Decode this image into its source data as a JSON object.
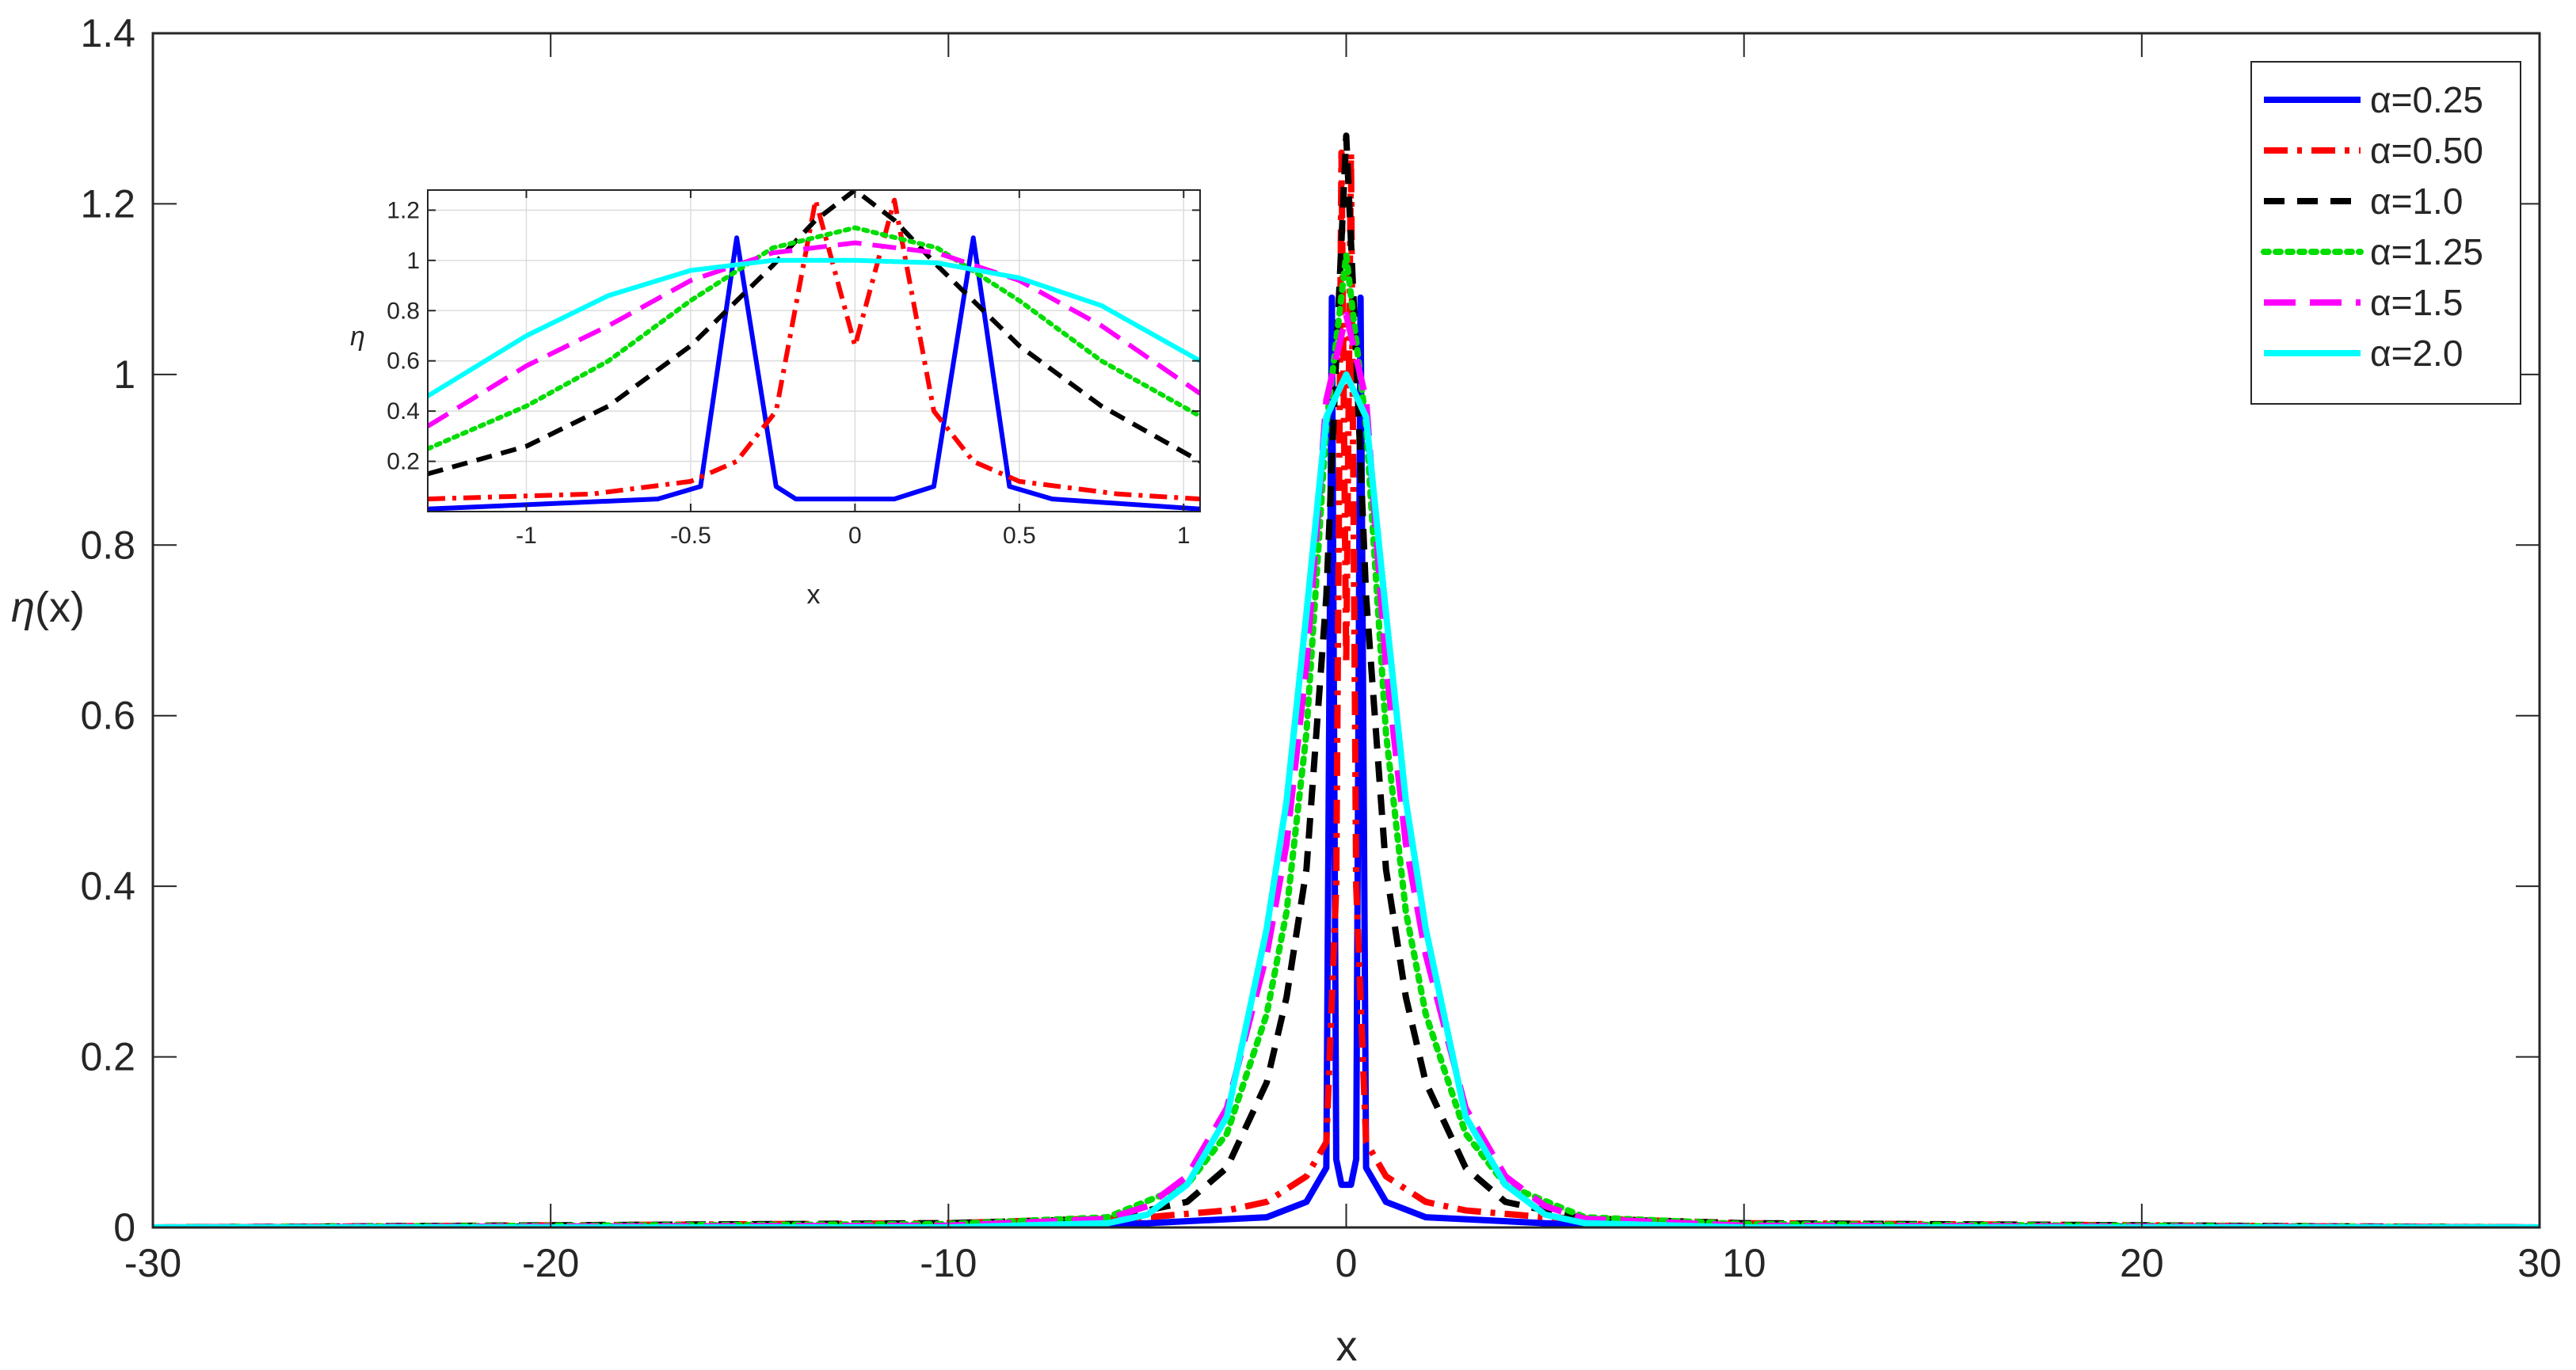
{
  "chart_data": [
    {
      "type": "line",
      "title": "",
      "xlabel": "x",
      "ylabel_symbol": "η",
      "ylabel_rest": "(x)",
      "xlim": [
        -30,
        30
      ],
      "ylim": [
        0,
        1.4
      ],
      "xticks": [
        -30,
        -20,
        -10,
        0,
        10,
        20,
        30
      ],
      "xtick_labels": [
        "-30",
        "-20",
        "-10",
        "0",
        "10",
        "20",
        "30"
      ],
      "yticks": [
        0,
        0.2,
        0.4,
        0.6,
        0.8,
        1.0,
        1.2,
        1.4
      ],
      "ytick_labels": [
        "0",
        "0.2",
        "0.4",
        "0.6",
        "0.8",
        "1",
        "1.2",
        "1.4"
      ],
      "grid": false,
      "legend_position": "top-right",
      "series": [
        {
          "name": "α=0.25",
          "color": "#0000ff",
          "dash": "solid",
          "x": [
            -30,
            -10,
            -5,
            -2,
            -1,
            -0.5,
            -0.36,
            -0.25,
            -0.12,
            0,
            0.12,
            0.25,
            0.36,
            0.5,
            1,
            2,
            5,
            10,
            30
          ],
          "y": [
            0,
            0.002,
            0.005,
            0.012,
            0.03,
            0.07,
            1.09,
            0.08,
            0.05,
            0.05,
            0.05,
            0.08,
            1.09,
            0.07,
            0.03,
            0.012,
            0.005,
            0.002,
            0
          ]
        },
        {
          "name": "α=0.50",
          "color": "#ff0000",
          "dash": "dashdot",
          "x": [
            -30,
            -10,
            -5,
            -3,
            -2,
            -1,
            -0.5,
            -0.25,
            -0.12,
            0,
            0.12,
            0.25,
            0.5,
            1,
            2,
            3,
            5,
            10,
            30
          ],
          "y": [
            0,
            0.005,
            0.012,
            0.02,
            0.03,
            0.06,
            0.1,
            0.4,
            1.26,
            0.66,
            1.26,
            0.4,
            0.1,
            0.06,
            0.03,
            0.02,
            0.012,
            0.005,
            0
          ]
        },
        {
          "name": "α=1.0",
          "color": "#000000",
          "dash": "dashed",
          "x": [
            -30,
            -10,
            -6,
            -4,
            -3,
            -2,
            -1.5,
            -1,
            -0.5,
            -0.25,
            0,
            0.25,
            0.5,
            1,
            1.5,
            2,
            3,
            4,
            6,
            10,
            30
          ],
          "y": [
            0,
            0.005,
            0.01,
            0.03,
            0.07,
            0.17,
            0.27,
            0.42,
            0.74,
            1.02,
            1.28,
            1.02,
            0.74,
            0.42,
            0.27,
            0.17,
            0.07,
            0.03,
            0.01,
            0.005,
            0
          ]
        },
        {
          "name": "α=1.25",
          "color": "#00dd00",
          "dash": "dotted",
          "x": [
            -30,
            -10,
            -6,
            -4,
            -3,
            -2,
            -1.5,
            -1,
            -0.5,
            0,
            0.5,
            1,
            1.5,
            2,
            3,
            4,
            6,
            10,
            30
          ],
          "y": [
            0,
            0.004,
            0.012,
            0.05,
            0.11,
            0.25,
            0.37,
            0.58,
            0.94,
            1.14,
            0.94,
            0.58,
            0.37,
            0.25,
            0.11,
            0.05,
            0.012,
            0.004,
            0
          ]
        },
        {
          "name": "α=1.5",
          "color": "#ff00ff",
          "dash": "longdash",
          "x": [
            -30,
            -10,
            -6,
            -5,
            -4,
            -3,
            -2,
            -1.5,
            -1,
            -0.5,
            0,
            0.5,
            1,
            1.5,
            2,
            3,
            4,
            5,
            6,
            10,
            30
          ],
          "y": [
            0,
            0.002,
            0.01,
            0.025,
            0.06,
            0.14,
            0.32,
            0.45,
            0.66,
            0.97,
            1.07,
            0.97,
            0.66,
            0.45,
            0.32,
            0.14,
            0.06,
            0.025,
            0.01,
            0.002,
            0
          ]
        },
        {
          "name": "α=2.0",
          "color": "#00ffff",
          "dash": "solid",
          "x": [
            -30,
            -10,
            -6,
            -5,
            -4,
            -3,
            -2,
            -1.5,
            -1,
            -0.5,
            0,
            0.5,
            1,
            1.5,
            2,
            3,
            4,
            5,
            6,
            10,
            30
          ],
          "y": [
            0,
            0,
            0.005,
            0.015,
            0.05,
            0.13,
            0.35,
            0.5,
            0.72,
            0.95,
            1.0,
            0.95,
            0.72,
            0.5,
            0.35,
            0.13,
            0.05,
            0.015,
            0.005,
            0,
            0
          ]
        }
      ]
    },
    {
      "type": "line",
      "title": "",
      "xlabel": "x",
      "ylabel": "η",
      "xlim": [
        -1.3,
        1.05
      ],
      "ylim": [
        0,
        1.28
      ],
      "xticks": [
        -1,
        -0.5,
        0,
        0.5,
        1
      ],
      "xtick_labels": [
        "-1",
        "-0.5",
        "0",
        "0.5",
        "1"
      ],
      "yticks": [
        0.2,
        0.4,
        0.6,
        0.8,
        1.0,
        1.2
      ],
      "ytick_labels": [
        "0.2",
        "0.4",
        "0.6",
        "0.8",
        "1",
        "1.2"
      ],
      "grid": true,
      "series": [
        {
          "name": "α=0.25",
          "color": "#0000ff",
          "dash": "solid",
          "x": [
            -1.3,
            -0.6,
            -0.47,
            -0.36,
            -0.24,
            -0.18,
            0,
            0.12,
            0.24,
            0.36,
            0.47,
            0.6,
            1.05
          ],
          "y": [
            0.01,
            0.05,
            0.1,
            1.09,
            0.1,
            0.05,
            0.05,
            0.05,
            0.1,
            1.09,
            0.1,
            0.05,
            0.01
          ]
        },
        {
          "name": "α=0.50",
          "color": "#ff0000",
          "dash": "dashdot",
          "x": [
            -1.3,
            -0.8,
            -0.5,
            -0.36,
            -0.24,
            -0.12,
            0,
            0.12,
            0.24,
            0.36,
            0.5,
            0.8,
            1.05
          ],
          "y": [
            0.05,
            0.07,
            0.12,
            0.2,
            0.4,
            1.24,
            0.66,
            1.24,
            0.4,
            0.2,
            0.12,
            0.07,
            0.05
          ]
        },
        {
          "name": "α=1.0",
          "color": "#000000",
          "dash": "dashed",
          "x": [
            -1.3,
            -1.0,
            -0.75,
            -0.5,
            -0.25,
            -0.12,
            0,
            0.12,
            0.25,
            0.5,
            0.75,
            1.05
          ],
          "y": [
            0.15,
            0.26,
            0.42,
            0.66,
            0.98,
            1.16,
            1.28,
            1.16,
            0.98,
            0.66,
            0.42,
            0.2
          ]
        },
        {
          "name": "α=1.25",
          "color": "#00dd00",
          "dash": "dotted",
          "x": [
            -1.3,
            -1.0,
            -0.75,
            -0.5,
            -0.25,
            0,
            0.25,
            0.5,
            0.75,
            1.05
          ],
          "y": [
            0.25,
            0.42,
            0.6,
            0.84,
            1.05,
            1.13,
            1.05,
            0.84,
            0.6,
            0.38
          ]
        },
        {
          "name": "α=1.5",
          "color": "#ff00ff",
          "dash": "longdash",
          "x": [
            -1.3,
            -1.0,
            -0.75,
            -0.5,
            -0.25,
            0,
            0.25,
            0.5,
            0.75,
            1.05
          ],
          "y": [
            0.34,
            0.58,
            0.74,
            0.92,
            1.03,
            1.07,
            1.03,
            0.92,
            0.74,
            0.47
          ]
        },
        {
          "name": "α=2.0",
          "color": "#00ffff",
          "dash": "solid",
          "x": [
            -1.3,
            -1.0,
            -0.75,
            -0.5,
            -0.25,
            0,
            0.25,
            0.5,
            0.75,
            1.05
          ],
          "y": [
            0.46,
            0.7,
            0.86,
            0.96,
            1.0,
            1.0,
            0.99,
            0.93,
            0.82,
            0.6
          ]
        }
      ]
    }
  ]
}
